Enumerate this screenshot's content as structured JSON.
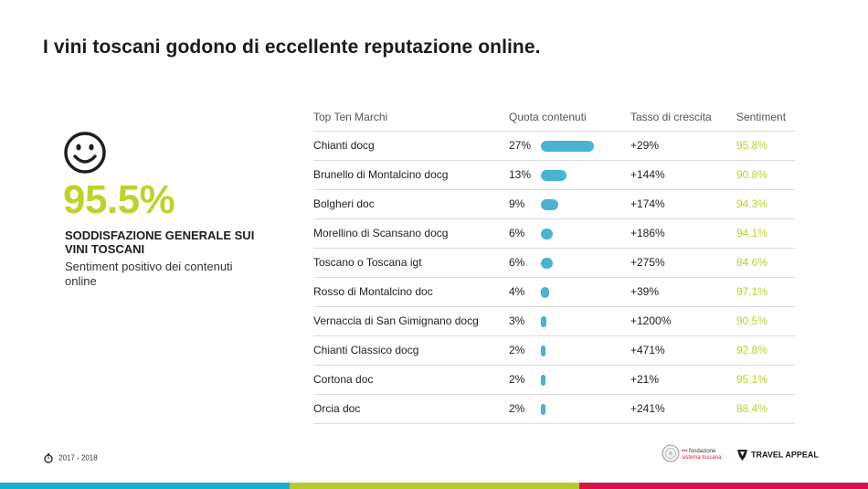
{
  "title": "I vini toscani godono di eccellente reputazione online.",
  "summary": {
    "value": "95.5%",
    "heading": "SODDISFAZIONE GENERALE SUI VINI TOSCANI",
    "subtitle": "Sentiment positivo dei contenuti online",
    "icon": "smiley-icon"
  },
  "colors": {
    "accent_green": "#bfd22c",
    "bar_blue": "#4ab3d0",
    "stripe_blue": "#1aafc9",
    "stripe_green": "#b7c930",
    "stripe_red": "#d6124a"
  },
  "chart_data": {
    "type": "table",
    "columns": [
      "Top Ten Marchi",
      "Quota contenuti",
      "Tasso di crescita",
      "Sentiment"
    ],
    "rows": [
      {
        "brand": "Chianti docg",
        "quota_label": "27%",
        "quota": 27,
        "growth": "+29%",
        "sentiment": "95.8%"
      },
      {
        "brand": "Brunello di Montalcino docg",
        "quota_label": "13%",
        "quota": 13,
        "growth": "+144%",
        "sentiment": "90.8%"
      },
      {
        "brand": "Bolgheri doc",
        "quota_label": "9%",
        "quota": 9,
        "growth": "+174%",
        "sentiment": "94.3%"
      },
      {
        "brand": "Morellino di Scansano docg",
        "quota_label": "6%",
        "quota": 6,
        "growth": "+186%",
        "sentiment": "94.1%"
      },
      {
        "brand": "Toscano o Toscana igt",
        "quota_label": "6%",
        "quota": 6,
        "growth": "+275%",
        "sentiment": "84.6%"
      },
      {
        "brand": "Rosso di Montalcino doc",
        "quota_label": "4%",
        "quota": 4,
        "growth": "+39%",
        "sentiment": "97.1%"
      },
      {
        "brand": "Vernaccia di San Gimignano docg",
        "quota_label": "3%",
        "quota": 3,
        "growth": "+1200%",
        "sentiment": "90.5%"
      },
      {
        "brand": "Chianti Classico docg",
        "quota_label": "2%",
        "quota": 2,
        "growth": "+471%",
        "sentiment": "92.8%"
      },
      {
        "brand": "Cortona doc",
        "quota_label": "2%",
        "quota": 2,
        "growth": "+21%",
        "sentiment": "95.1%"
      },
      {
        "brand": "Orcia doc",
        "quota_label": "2%",
        "quota": 2,
        "growth": "+241%",
        "sentiment": "88.4%"
      }
    ]
  },
  "footer": {
    "date_range": "2017 - 2018",
    "clock_icon": "stopwatch-icon",
    "partner_line1": "fondazione",
    "partner_line2": "sistema toscana",
    "partner_icon": "seal-icon",
    "brand": "TRAVEL APPEAL",
    "brand_icon": "travel-appeal-logo-icon"
  }
}
